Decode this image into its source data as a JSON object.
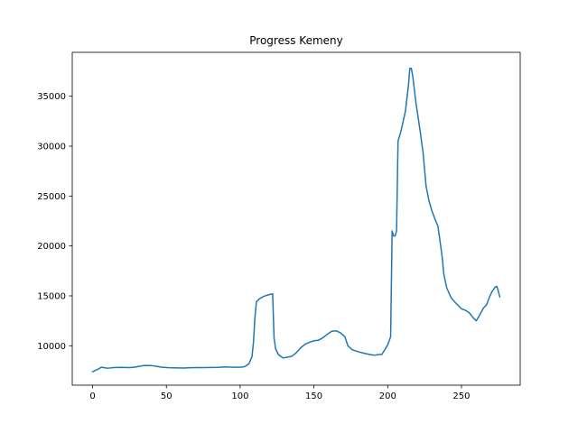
{
  "chart_data": {
    "type": "line",
    "title": "Progress Kemeny",
    "xlabel": "",
    "ylabel": "",
    "xlim": [
      -13.8,
      289.8
    ],
    "ylim": [
      6050,
      39400
    ],
    "x_ticks": [
      0,
      50,
      100,
      150,
      200,
      250
    ],
    "y_ticks": [
      10000,
      15000,
      20000,
      25000,
      30000,
      35000
    ],
    "grid": false,
    "legend": "none",
    "line_color": "#1f77b4",
    "series": [
      {
        "points": [
          [
            0,
            7400
          ],
          [
            3,
            7600
          ],
          [
            6,
            7850
          ],
          [
            8,
            7800
          ],
          [
            10,
            7750
          ],
          [
            15,
            7820
          ],
          [
            20,
            7830
          ],
          [
            25,
            7810
          ],
          [
            28,
            7850
          ],
          [
            32,
            7950
          ],
          [
            35,
            8030
          ],
          [
            40,
            8010
          ],
          [
            43,
            7950
          ],
          [
            47,
            7850
          ],
          [
            52,
            7800
          ],
          [
            58,
            7780
          ],
          [
            62,
            7770
          ],
          [
            66,
            7800
          ],
          [
            70,
            7810
          ],
          [
            75,
            7810
          ],
          [
            80,
            7820
          ],
          [
            85,
            7840
          ],
          [
            90,
            7880
          ],
          [
            95,
            7850
          ],
          [
            100,
            7850
          ],
          [
            103,
            7900
          ],
          [
            106,
            8200
          ],
          [
            108,
            8900
          ],
          [
            109,
            10300
          ],
          [
            110,
            12800
          ],
          [
            111,
            14400
          ],
          [
            113,
            14700
          ],
          [
            116,
            14950
          ],
          [
            119,
            15100
          ],
          [
            122,
            15200
          ],
          [
            123,
            10800
          ],
          [
            124,
            9700
          ],
          [
            126,
            9100
          ],
          [
            129,
            8780
          ],
          [
            132,
            8850
          ],
          [
            135,
            8950
          ],
          [
            138,
            9300
          ],
          [
            141,
            9800
          ],
          [
            144,
            10150
          ],
          [
            147,
            10350
          ],
          [
            150,
            10500
          ],
          [
            153,
            10550
          ],
          [
            156,
            10800
          ],
          [
            159,
            11150
          ],
          [
            162,
            11450
          ],
          [
            165,
            11500
          ],
          [
            168,
            11300
          ],
          [
            171,
            10900
          ],
          [
            173,
            10000
          ],
          [
            176,
            9600
          ],
          [
            180,
            9400
          ],
          [
            184,
            9250
          ],
          [
            188,
            9120
          ],
          [
            191,
            9050
          ],
          [
            194,
            9120
          ],
          [
            196,
            9120
          ],
          [
            198,
            9600
          ],
          [
            200,
            10100
          ],
          [
            202,
            10900
          ],
          [
            203,
            21500
          ],
          [
            204,
            21000
          ],
          [
            205,
            21000
          ],
          [
            206,
            21500
          ],
          [
            207,
            30500
          ],
          [
            209,
            31500
          ],
          [
            212,
            33500
          ],
          [
            214,
            36000
          ],
          [
            215,
            37800
          ],
          [
            216,
            37800
          ],
          [
            217,
            37000
          ],
          [
            219,
            34500
          ],
          [
            222,
            31500
          ],
          [
            224,
            29300
          ],
          [
            226,
            26000
          ],
          [
            228,
            24500
          ],
          [
            230,
            23500
          ],
          [
            232,
            22700
          ],
          [
            234,
            22000
          ],
          [
            235,
            21000
          ],
          [
            237,
            18800
          ],
          [
            238,
            17200
          ],
          [
            240,
            15800
          ],
          [
            243,
            14800
          ],
          [
            246,
            14300
          ],
          [
            248,
            14000
          ],
          [
            250,
            13700
          ],
          [
            252,
            13600
          ],
          [
            255,
            13350
          ],
          [
            258,
            12800
          ],
          [
            260,
            12500
          ],
          [
            262,
            13000
          ],
          [
            265,
            13800
          ],
          [
            267,
            14100
          ],
          [
            269,
            14900
          ],
          [
            271,
            15500
          ],
          [
            273,
            15900
          ],
          [
            274,
            15950
          ],
          [
            276,
            14900
          ]
        ]
      }
    ]
  }
}
